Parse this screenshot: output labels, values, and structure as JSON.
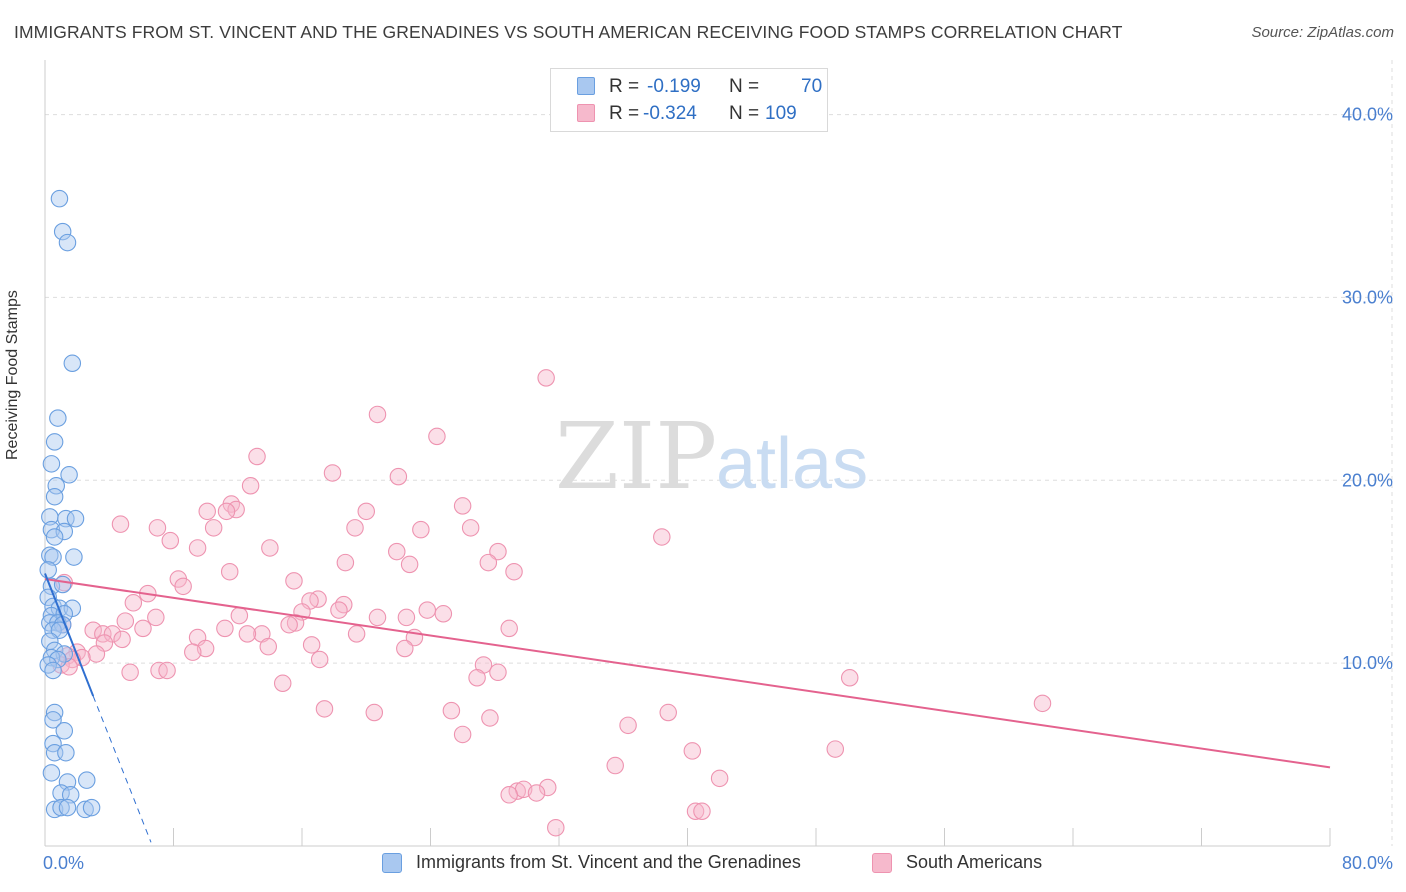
{
  "title": "IMMIGRANTS FROM ST. VINCENT AND THE GRENADINES VS SOUTH AMERICAN RECEIVING FOOD STAMPS CORRELATION CHART",
  "source": "Source: ZipAtlas.com",
  "watermark": {
    "zip": "ZIP",
    "atlas": "atlas"
  },
  "colors": {
    "blue_fill": "#a9c8f0",
    "blue_stroke": "#6a9fe0",
    "blue_line": "#2f6fd0",
    "pink_fill": "#f6b9cc",
    "pink_stroke": "#ee93b0",
    "pink_line": "#e4628e",
    "grid": "#dddddd",
    "tick_text": "#4a7fcf"
  },
  "stats": {
    "rows": [
      {
        "r_label": "R =",
        "r_value": "-0.199",
        "n_label": "N =",
        "n_value": "70",
        "color": "blue"
      },
      {
        "r_label": "R =",
        "r_value": "-0.324",
        "n_label": "N =",
        "n_value": "109",
        "color": "pink"
      }
    ]
  },
  "legend": {
    "items": [
      {
        "label": "Immigrants from St. Vincent and the Grenadines",
        "color": "blue"
      },
      {
        "label": "South Americans",
        "color": "pink"
      }
    ]
  },
  "chart_data": {
    "type": "scatter",
    "title": "IMMIGRANTS FROM ST. VINCENT AND THE GRENADINES VS SOUTH AMERICAN RECEIVING FOOD STAMPS CORRELATION CHART",
    "xlabel": "",
    "ylabel": "Receiving Food Stamps",
    "xlim": [
      0,
      80
    ],
    "ylim": [
      0,
      42
    ],
    "x_ticks": [
      "0.0%",
      "80.0%"
    ],
    "y_ticks": [
      {
        "value": 10,
        "label": "10.0%"
      },
      {
        "value": 20,
        "label": "20.0%"
      },
      {
        "value": 30,
        "label": "30.0%"
      },
      {
        "value": 40,
        "label": "40.0%"
      }
    ],
    "grid": true,
    "legend_position": "bottom",
    "series": [
      {
        "name": "Immigrants from St. Vincent and the Grenadines",
        "color": "blue",
        "trend": {
          "x0": 0,
          "y0": 14.9,
          "x1": 3.0,
          "y1": 8.2,
          "dash_x1": 6.6,
          "dash_y1": 0.2
        },
        "points": [
          [
            0.9,
            35.4
          ],
          [
            1.1,
            33.6
          ],
          [
            1.4,
            33.0
          ],
          [
            1.7,
            26.4
          ],
          [
            0.8,
            23.4
          ],
          [
            0.6,
            22.1
          ],
          [
            0.4,
            20.9
          ],
          [
            1.5,
            20.3
          ],
          [
            0.7,
            19.7
          ],
          [
            0.6,
            19.1
          ],
          [
            0.3,
            18.0
          ],
          [
            1.3,
            17.9
          ],
          [
            1.9,
            17.9
          ],
          [
            0.4,
            17.3
          ],
          [
            1.2,
            17.2
          ],
          [
            0.6,
            16.9
          ],
          [
            0.3,
            15.9
          ],
          [
            0.5,
            15.8
          ],
          [
            1.8,
            15.8
          ],
          [
            0.2,
            15.1
          ],
          [
            0.4,
            14.2
          ],
          [
            1.1,
            14.3
          ],
          [
            0.2,
            13.6
          ],
          [
            0.5,
            13.1
          ],
          [
            0.9,
            13.0
          ],
          [
            1.7,
            13.0
          ],
          [
            0.4,
            12.6
          ],
          [
            1.2,
            12.7
          ],
          [
            0.3,
            12.2
          ],
          [
            0.8,
            12.2
          ],
          [
            1.1,
            12.1
          ],
          [
            0.5,
            11.8
          ],
          [
            0.9,
            11.8
          ],
          [
            0.3,
            11.2
          ],
          [
            0.6,
            10.7
          ],
          [
            1.2,
            10.5
          ],
          [
            0.4,
            10.3
          ],
          [
            0.8,
            10.2
          ],
          [
            0.2,
            9.9
          ],
          [
            0.5,
            9.6
          ],
          [
            0.6,
            7.3
          ],
          [
            0.5,
            6.9
          ],
          [
            1.2,
            6.3
          ],
          [
            0.5,
            5.6
          ],
          [
            0.6,
            5.1
          ],
          [
            1.3,
            5.1
          ],
          [
            0.4,
            4.0
          ],
          [
            1.4,
            3.5
          ],
          [
            2.6,
            3.6
          ],
          [
            1.0,
            2.9
          ],
          [
            1.6,
            2.8
          ],
          [
            0.6,
            2.0
          ],
          [
            1.0,
            2.1
          ],
          [
            1.4,
            2.1
          ],
          [
            2.5,
            2.0
          ],
          [
            2.9,
            2.1
          ]
        ]
      },
      {
        "name": "South Americans",
        "color": "pink",
        "trend": {
          "x0": 0,
          "y0": 14.6,
          "x1": 80,
          "y1": 4.3
        },
        "points": [
          [
            31.2,
            25.6
          ],
          [
            20.7,
            23.6
          ],
          [
            24.4,
            22.4
          ],
          [
            13.2,
            21.3
          ],
          [
            17.9,
            20.4
          ],
          [
            22.0,
            20.2
          ],
          [
            12.8,
            19.7
          ],
          [
            11.6,
            18.7
          ],
          [
            11.9,
            18.4
          ],
          [
            10.1,
            18.3
          ],
          [
            11.3,
            18.3
          ],
          [
            26.0,
            18.6
          ],
          [
            20.0,
            18.3
          ],
          [
            4.7,
            17.6
          ],
          [
            7.0,
            17.4
          ],
          [
            10.5,
            17.4
          ],
          [
            19.3,
            17.4
          ],
          [
            23.4,
            17.3
          ],
          [
            26.5,
            17.4
          ],
          [
            38.4,
            16.9
          ],
          [
            7.8,
            16.7
          ],
          [
            14.0,
            16.3
          ],
          [
            9.5,
            16.3
          ],
          [
            21.9,
            16.1
          ],
          [
            28.2,
            16.1
          ],
          [
            18.7,
            15.5
          ],
          [
            27.6,
            15.5
          ],
          [
            22.7,
            15.4
          ],
          [
            29.2,
            15.0
          ],
          [
            11.5,
            15.0
          ],
          [
            15.5,
            14.5
          ],
          [
            1.2,
            14.4
          ],
          [
            8.3,
            14.6
          ],
          [
            8.6,
            14.2
          ],
          [
            6.4,
            13.8
          ],
          [
            17.0,
            13.5
          ],
          [
            16.5,
            13.4
          ],
          [
            5.5,
            13.3
          ],
          [
            18.6,
            13.2
          ],
          [
            18.3,
            12.9
          ],
          [
            23.8,
            12.9
          ],
          [
            16.0,
            12.8
          ],
          [
            24.8,
            12.7
          ],
          [
            12.1,
            12.6
          ],
          [
            20.7,
            12.5
          ],
          [
            22.5,
            12.5
          ],
          [
            6.9,
            12.5
          ],
          [
            5.0,
            12.3
          ],
          [
            15.6,
            12.2
          ],
          [
            15.2,
            12.1
          ],
          [
            1.1,
            12.1
          ],
          [
            6.1,
            11.9
          ],
          [
            11.2,
            11.9
          ],
          [
            28.9,
            11.9
          ],
          [
            3.0,
            11.8
          ],
          [
            3.6,
            11.6
          ],
          [
            4.2,
            11.6
          ],
          [
            13.5,
            11.6
          ],
          [
            12.6,
            11.6
          ],
          [
            19.4,
            11.6
          ],
          [
            9.5,
            11.4
          ],
          [
            23.0,
            11.4
          ],
          [
            4.8,
            11.3
          ],
          [
            3.7,
            11.1
          ],
          [
            16.6,
            11.0
          ],
          [
            13.9,
            10.9
          ],
          [
            22.4,
            10.8
          ],
          [
            10.0,
            10.8
          ],
          [
            9.2,
            10.6
          ],
          [
            2.0,
            10.6
          ],
          [
            3.2,
            10.5
          ],
          [
            1.4,
            10.4
          ],
          [
            2.3,
            10.3
          ],
          [
            1.7,
            10.2
          ],
          [
            17.1,
            10.2
          ],
          [
            27.3,
            9.9
          ],
          [
            1.0,
            9.9
          ],
          [
            1.5,
            9.8
          ],
          [
            5.3,
            9.5
          ],
          [
            7.1,
            9.6
          ],
          [
            7.6,
            9.6
          ],
          [
            28.2,
            9.5
          ],
          [
            26.9,
            9.2
          ],
          [
            50.1,
            9.2
          ],
          [
            14.8,
            8.9
          ],
          [
            62.1,
            7.8
          ],
          [
            17.4,
            7.5
          ],
          [
            20.5,
            7.3
          ],
          [
            25.3,
            7.4
          ],
          [
            38.8,
            7.3
          ],
          [
            27.7,
            7.0
          ],
          [
            36.3,
            6.6
          ],
          [
            26.0,
            6.1
          ],
          [
            49.2,
            5.3
          ],
          [
            40.3,
            5.2
          ],
          [
            35.5,
            4.4
          ],
          [
            42.0,
            3.7
          ],
          [
            31.3,
            3.2
          ],
          [
            29.4,
            3.0
          ],
          [
            29.8,
            3.1
          ],
          [
            30.6,
            2.9
          ],
          [
            28.9,
            2.8
          ],
          [
            40.5,
            1.9
          ],
          [
            40.9,
            1.9
          ],
          [
            31.8,
            1.0
          ]
        ]
      }
    ]
  }
}
